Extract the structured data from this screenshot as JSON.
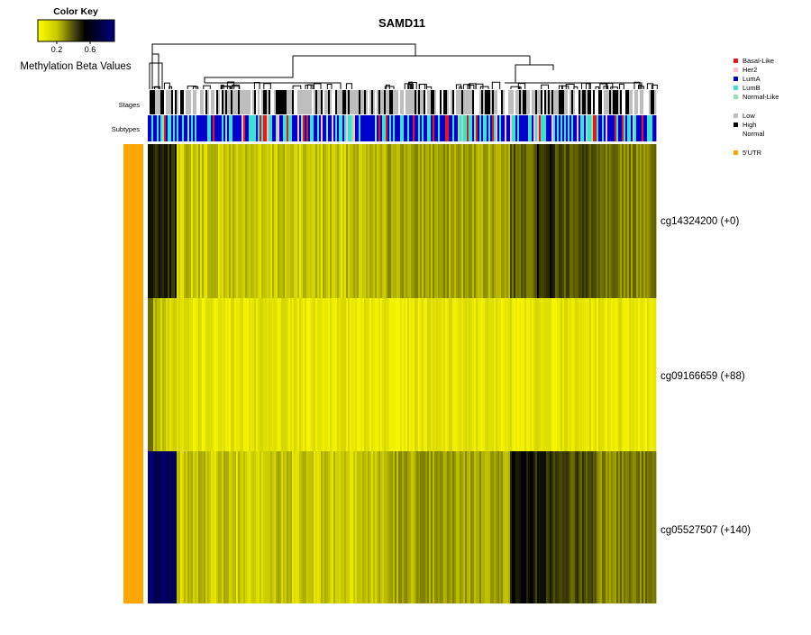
{
  "chart_data": {
    "type": "heatmap",
    "title": "SAMD11",
    "color_key": {
      "title": "Color Key",
      "label": "Methylation Beta Values",
      "ticks": [
        "0.2",
        "0.6"
      ],
      "colors": [
        "#ffff00",
        "#000000",
        "#000080"
      ]
    },
    "track_labels": [
      "Stages",
      "Subtypes"
    ],
    "legend": [
      {
        "label": "Basal-Like",
        "color": "#e31a1c"
      },
      {
        "label": "Her2",
        "color": "#ffc0cb"
      },
      {
        "label": "LumA",
        "color": "#0000cd"
      },
      {
        "label": "LumB",
        "color": "#40e0d0"
      },
      {
        "label": "Normal-Like",
        "color": "#98e0b0"
      },
      {
        "label": "Low",
        "color": "#bebebe"
      },
      {
        "label": "High",
        "color": "#000000"
      },
      {
        "label": "Normal",
        "color": ""
      },
      {
        "label": "5'UTR",
        "color": "#ffa500"
      }
    ],
    "rows": [
      {
        "label": "cg14324200 (+0)",
        "region": "5'UTR"
      },
      {
        "label": "cg09166659 (+88)",
        "region": "5'UTR"
      },
      {
        "label": "cg05527507 (+140)",
        "region": "5'UTR"
      }
    ]
  }
}
